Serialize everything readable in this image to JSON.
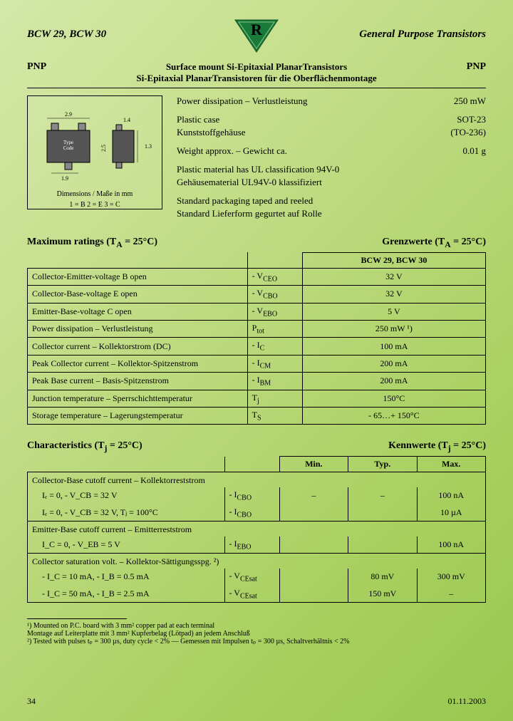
{
  "header": {
    "left": "BCW 29, BCW 30",
    "right": "General Purpose Transistors",
    "logo_letter": "R",
    "logo_fill": "#1a7a3a",
    "logo_stroke": "#0d5020"
  },
  "subtitle": {
    "pnp": "PNP",
    "line1": "Surface mount Si-Epitaxial PlanarTransistors",
    "line2": "Si-Epitaxial PlanarTransistoren für die Oberflächenmontage"
  },
  "diagram": {
    "caption1": "Dimensions / Maße in mm",
    "caption2": "1 = B    2 = E    3 = C",
    "dims": {
      "w1": "2.9",
      "h1": "2.5",
      "w2": "1.4",
      "h2": "1.3",
      "pitch": "1.9"
    }
  },
  "info": {
    "r1_label": "Power dissipation – Verlustleistung",
    "r1_val": "250 mW",
    "r2_label": "Plastic case",
    "r2_val": "SOT-23",
    "r3_label": "Kunststoffgehäuse",
    "r3_val": "(TO-236)",
    "r4_label": "Weight approx. – Gewicht ca.",
    "r4_val": "0.01 g",
    "r5": "Plastic material has UL classification 94V-0",
    "r6": "Gehäusematerial UL94V-0 klassifiziert",
    "r7": "Standard packaging taped and reeled",
    "r8": "Standard Lieferform gegurtet auf Rolle"
  },
  "ratings": {
    "title_left": "Maximum ratings (T",
    "title_left2": " = 25°C)",
    "title_right": "Grenzwerte (T",
    "title_right2": " = 25°C)",
    "header_part": "BCW 29, BCW 30",
    "rows": [
      {
        "p": "Collector-Emitter-voltage            B open",
        "s": "- V",
        "sub": "CEO",
        "v": "32 V"
      },
      {
        "p": "Collector-Base-voltage                E open",
        "s": "- V",
        "sub": "CBO",
        "v": "32 V"
      },
      {
        "p": "Emitter-Base-voltage                   C open",
        "s": "- V",
        "sub": "EBO",
        "v": "5 V"
      },
      {
        "p": "Power dissipation – Verlustleistung",
        "s": "P",
        "sub": "tot",
        "v": "250 mW ¹)"
      },
      {
        "p": "Collector current – Kollektorstrom (DC)",
        "s": "- I",
        "sub": "C",
        "v": "100 mA"
      },
      {
        "p": "Peak Collector current – Kollektor-Spitzenstrom",
        "s": "- I",
        "sub": "CM",
        "v": "200 mA"
      },
      {
        "p": "Peak Base current – Basis-Spitzenstrom",
        "s": "- I",
        "sub": "BM",
        "v": "200 mA"
      },
      {
        "p": "Junction temperature – Sperrschichttemperatur",
        "s": "T",
        "sub": "j",
        "v": "150°C"
      },
      {
        "p": "Storage temperature – Lagerungstemperatur",
        "s": "T",
        "sub": "S",
        "v": "- 65…+ 150°C"
      }
    ]
  },
  "chars": {
    "title_left": "Characteristics (T",
    "title_left2": " = 25°C)",
    "title_right": "Kennwerte (T",
    "title_right2": " = 25°C)",
    "h_min": "Min.",
    "h_typ": "Typ.",
    "h_max": "Max.",
    "grp1_title": "Collector-Base cutoff current – Kollektorreststrom",
    "grp1_r1_cond": "Iₑ = 0, - V_CB = 32 V",
    "grp1_r1_sym": "- I",
    "grp1_r1_sub": "CBO",
    "grp1_r1_min": "–",
    "grp1_r1_typ": "–",
    "grp1_r1_max": "100 nA",
    "grp1_r2_cond": "Iₑ = 0, - V_CB = 32 V, Tⱼ = 100°C",
    "grp1_r2_sym": "- I",
    "grp1_r2_sub": "CBO",
    "grp1_r2_min": "",
    "grp1_r2_typ": "",
    "grp1_r2_max": "10 µA",
    "grp2_title": "Emitter-Base cutoff current – Emitterreststrom",
    "grp2_r1_cond": "I_C = 0, - V_EB = 5 V",
    "grp2_r1_sym": "- I",
    "grp2_r1_sub": "EBO",
    "grp2_r1_min": "",
    "grp2_r1_typ": "",
    "grp2_r1_max": "100 nA",
    "grp3_title": "Collector saturation volt. – Kollektor-Sättigungsspg. ²)",
    "grp3_r1_cond": "- I_C = 10 mA, - I_B = 0.5 mA",
    "grp3_r1_sym": "- V",
    "grp3_r1_sub": "CEsat",
    "grp3_r1_min": "",
    "grp3_r1_typ": "80 mV",
    "grp3_r1_max": "300 mV",
    "grp3_r2_cond": "- I_C = 50 mA, - I_B = 2.5 mA",
    "grp3_r2_sym": "- V",
    "grp3_r2_sub": "CEsat",
    "grp3_r2_min": "",
    "grp3_r2_typ": "150 mV",
    "grp3_r2_max": "–"
  },
  "footnotes": {
    "f1a": "¹)  Mounted on P.C. board with 3 mm² copper pad at each terminal",
    "f1b": "    Montage auf Leiterplatte mit 3 mm² Kupferbelag (Lötpad) an jedem Anschluß",
    "f2": "²)  Tested with pulses tₚ = 300 µs, duty cycle < 2% — Gemessen mit Impulsen tₚ = 300 µs, Schaltverhältnis < 2%"
  },
  "footer": {
    "page": "34",
    "date": "01.11.2003"
  }
}
